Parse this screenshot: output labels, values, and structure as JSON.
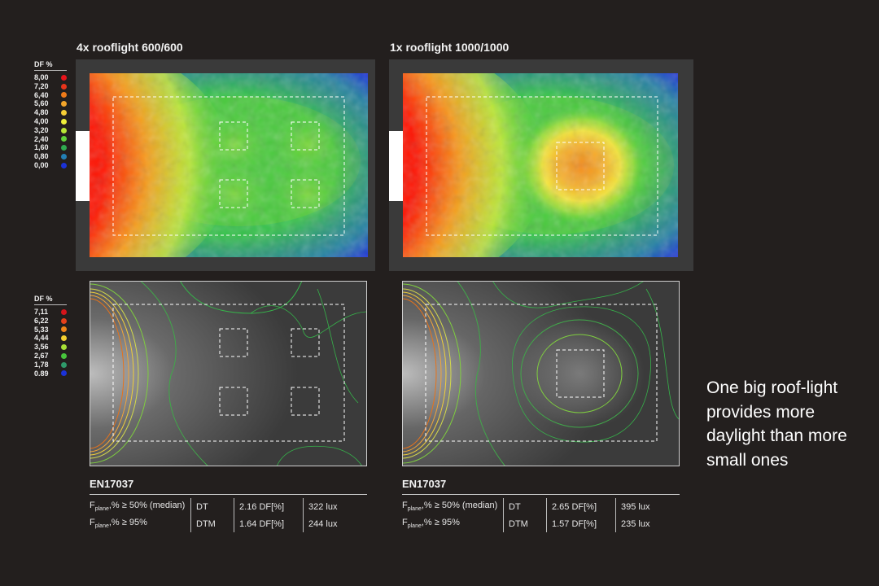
{
  "panels": [
    {
      "title": "4x rooflight 600/600"
    },
    {
      "title": "1x rooflight 1000/1000"
    }
  ],
  "legend_top": {
    "title": "DF %",
    "items": [
      {
        "value": "8,00",
        "color": "#e8141b"
      },
      {
        "value": "7,20",
        "color": "#e8341b"
      },
      {
        "value": "6,40",
        "color": "#ef7a19"
      },
      {
        "value": "5,60",
        "color": "#f3a52a"
      },
      {
        "value": "4,80",
        "color": "#f7cf36"
      },
      {
        "value": "4,00",
        "color": "#eef03a"
      },
      {
        "value": "3,20",
        "color": "#b9e636"
      },
      {
        "value": "2,40",
        "color": "#5fd23a"
      },
      {
        "value": "1,60",
        "color": "#2faa50"
      },
      {
        "value": "0,80",
        "color": "#237fb4"
      },
      {
        "value": "0,00",
        "color": "#1b32d8"
      }
    ]
  },
  "legend_bottom": {
    "title": "DF %",
    "items": [
      {
        "value": "7,11",
        "color": "#d4141b"
      },
      {
        "value": "6,22",
        "color": "#e4401b"
      },
      {
        "value": "5,33",
        "color": "#ef8419"
      },
      {
        "value": "4,44",
        "color": "#f5d030"
      },
      {
        "value": "3,56",
        "color": "#a7e036"
      },
      {
        "value": "2,67",
        "color": "#47c43c"
      },
      {
        "value": "1,78",
        "color": "#2e9a6a"
      },
      {
        "value": "0.89",
        "color": "#1b32d8"
      }
    ]
  },
  "results": [
    {
      "standard": "EN17037",
      "rows": [
        {
          "label_pre": "F",
          "label_sub": "plane",
          "label_post": ",% ≥ 50% (median)",
          "code": "DT",
          "df": "2.16 DF[%]",
          "lux": "322 lux"
        },
        {
          "label_pre": "F",
          "label_sub": "plane",
          "label_post": ",% ≥ 95%",
          "code": "DTM",
          "df": "1.64 DF[%]",
          "lux": "244 lux"
        }
      ]
    },
    {
      "standard": "EN17037",
      "rows": [
        {
          "label_pre": "F",
          "label_sub": "plane",
          "label_post": ",% ≥ 50% (median)",
          "code": "DT",
          "df": "2.65 DF[%]",
          "lux": "395 lux"
        },
        {
          "label_pre": "F",
          "label_sub": "plane",
          "label_post": ",% ≥ 95%",
          "code": "DTM",
          "df": "1.57 DF[%]",
          "lux": "235 lux"
        }
      ]
    }
  ],
  "caption": "One big roof-light provides more daylight than more small ones"
}
